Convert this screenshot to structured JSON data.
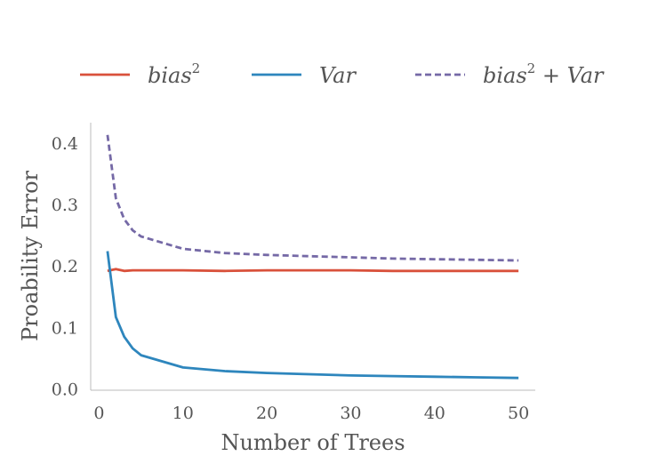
{
  "chart_data": {
    "type": "line",
    "title": "",
    "xlabel": "Number of Trees",
    "ylabel": "Proability Error",
    "xlim": [
      -1,
      52
    ],
    "ylim": [
      -0.002,
      0.433
    ],
    "xticks": [
      0,
      10,
      20,
      30,
      40,
      50
    ],
    "yticks": [
      0.0,
      0.1,
      0.2,
      0.3,
      0.4
    ],
    "xtick_labels": [
      "0",
      "10",
      "20",
      "30",
      "40",
      "50"
    ],
    "ytick_labels": [
      "0.0",
      "0.1",
      "0.2",
      "0.3",
      "0.4"
    ],
    "grid": false,
    "legend_position": "top",
    "legend": [
      {
        "base": "bias",
        "sup": "2",
        "rest": ""
      },
      {
        "base": "Var",
        "sup": "",
        "rest": ""
      },
      {
        "base": "bias",
        "sup": "2",
        "rest": " + Var"
      }
    ],
    "series": [
      {
        "color": "#d9513b",
        "dash": "solid",
        "x": [
          1,
          2,
          3,
          4,
          5,
          10,
          15,
          20,
          25,
          30,
          35,
          40,
          45,
          50
        ],
        "y": [
          0.192,
          0.195,
          0.192,
          0.193,
          0.193,
          0.193,
          0.192,
          0.193,
          0.193,
          0.193,
          0.192,
          0.192,
          0.192,
          0.192
        ]
      },
      {
        "color": "#2e86bd",
        "dash": "solid",
        "x": [
          1,
          2,
          3,
          4,
          5,
          10,
          15,
          20,
          25,
          30,
          35,
          40,
          45,
          50
        ],
        "y": [
          0.224,
          0.117,
          0.085,
          0.066,
          0.055,
          0.035,
          0.029,
          0.026,
          0.024,
          0.022,
          0.021,
          0.02,
          0.019,
          0.018
        ]
      },
      {
        "color": "#7569a6",
        "dash": "dashed",
        "x": [
          1,
          2,
          3,
          4,
          5,
          10,
          15,
          20,
          25,
          30,
          35,
          40,
          45,
          50
        ],
        "y": [
          0.413,
          0.31,
          0.276,
          0.258,
          0.248,
          0.228,
          0.221,
          0.218,
          0.216,
          0.214,
          0.212,
          0.211,
          0.21,
          0.209
        ]
      }
    ]
  }
}
